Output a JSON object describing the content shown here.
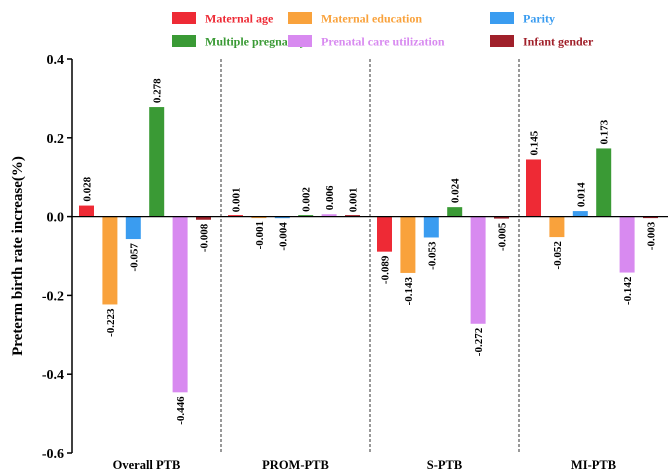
{
  "chart_data": {
    "type": "bar",
    "ylabel": "Preterm birth rate increase(%)",
    "ylim": [
      -0.6,
      0.4
    ],
    "yticks": [
      "-0.6",
      "-0.4",
      "-0.2",
      "0.0",
      "0.2",
      "0.4"
    ],
    "categories": [
      "Overall PTB",
      "PROM-PTB",
      "S-PTB",
      "MI-PTB"
    ],
    "legend_position": "top",
    "grid": false,
    "series": [
      {
        "name": "Maternal age",
        "color": "#ee2a35",
        "values": [
          0.028,
          0.001,
          -0.089,
          0.145
        ],
        "labels": [
          "0.028",
          "0.001",
          "-0.089",
          "0.145"
        ]
      },
      {
        "name": "Maternal education",
        "color": "#f9a23c",
        "values": [
          -0.223,
          -0.001,
          -0.143,
          -0.052
        ],
        "labels": [
          "-0.223",
          "-0.001",
          "-0.143",
          "-0.052"
        ]
      },
      {
        "name": "Parity",
        "color": "#3a9cf0",
        "values": [
          -0.057,
          -0.004,
          -0.053,
          0.014
        ],
        "labels": [
          "-0.057",
          "-0.004",
          "-0.053",
          "0.014"
        ]
      },
      {
        "name": "Multiple pregnancy",
        "color": "#3a9a35",
        "values": [
          0.278,
          0.002,
          0.024,
          0.173
        ],
        "labels": [
          "0.278",
          "0.002",
          "0.024",
          "0.173"
        ]
      },
      {
        "name": "Prenatal care utilization",
        "color": "#d88af0",
        "values": [
          -0.446,
          0.006,
          -0.272,
          -0.142
        ],
        "labels": [
          "-0.446",
          "0.006",
          "-0.272",
          "-0.142"
        ]
      },
      {
        "name": "Infant gender",
        "color": "#a0202a",
        "values": [
          -0.008,
          0.001,
          -0.005,
          -0.003
        ],
        "labels": [
          "-0.008",
          "0.001",
          "-0.005",
          "-0.003"
        ]
      }
    ]
  }
}
